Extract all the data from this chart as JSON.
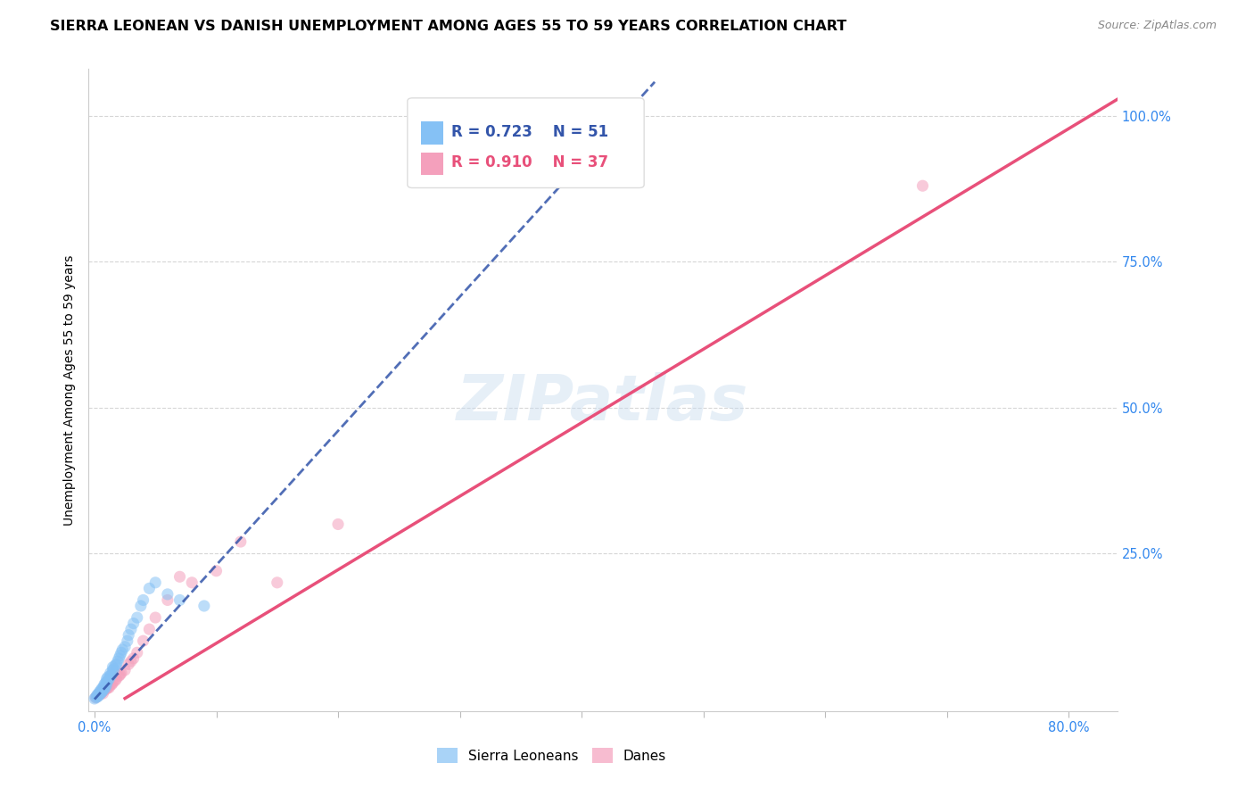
{
  "title": "SIERRA LEONEAN VS DANISH UNEMPLOYMENT AMONG AGES 55 TO 59 YEARS CORRELATION CHART",
  "source": "Source: ZipAtlas.com",
  "ylabel": "Unemployment Among Ages 55 to 59 years",
  "xlim": [
    -0.005,
    0.84
  ],
  "ylim": [
    -0.02,
    1.08
  ],
  "background_color": "#ffffff",
  "watermark": "ZIPatlas",
  "legend_r1": "0.723",
  "legend_n1": "51",
  "legend_r2": "0.910",
  "legend_n2": "37",
  "sierra_color": "#85C1F5",
  "sierra_line_color": "#3355AA",
  "dane_color": "#F4A0BC",
  "dane_line_color": "#E8507A",
  "sierra_points_x": [
    0.0,
    0.001,
    0.002,
    0.002,
    0.003,
    0.003,
    0.004,
    0.004,
    0.005,
    0.005,
    0.006,
    0.006,
    0.007,
    0.007,
    0.008,
    0.008,
    0.008,
    0.009,
    0.009,
    0.01,
    0.01,
    0.01,
    0.011,
    0.011,
    0.012,
    0.013,
    0.013,
    0.014,
    0.015,
    0.015,
    0.016,
    0.017,
    0.018,
    0.019,
    0.02,
    0.021,
    0.022,
    0.023,
    0.025,
    0.027,
    0.028,
    0.03,
    0.032,
    0.035,
    0.038,
    0.04,
    0.045,
    0.05,
    0.06,
    0.07,
    0.09
  ],
  "sierra_points_y": [
    0.001,
    0.003,
    0.004,
    0.007,
    0.005,
    0.009,
    0.008,
    0.012,
    0.01,
    0.015,
    0.012,
    0.018,
    0.015,
    0.02,
    0.018,
    0.022,
    0.025,
    0.02,
    0.028,
    0.025,
    0.03,
    0.035,
    0.032,
    0.038,
    0.035,
    0.04,
    0.045,
    0.042,
    0.05,
    0.055,
    0.052,
    0.058,
    0.06,
    0.065,
    0.07,
    0.075,
    0.08,
    0.085,
    0.09,
    0.1,
    0.11,
    0.12,
    0.13,
    0.14,
    0.16,
    0.17,
    0.19,
    0.2,
    0.18,
    0.17,
    0.16
  ],
  "dane_points_x": [
    0.001,
    0.002,
    0.003,
    0.004,
    0.005,
    0.006,
    0.007,
    0.007,
    0.008,
    0.009,
    0.01,
    0.011,
    0.012,
    0.013,
    0.014,
    0.015,
    0.017,
    0.018,
    0.02,
    0.021,
    0.022,
    0.025,
    0.028,
    0.03,
    0.032,
    0.035,
    0.04,
    0.045,
    0.05,
    0.06,
    0.07,
    0.08,
    0.1,
    0.12,
    0.15,
    0.2,
    0.68
  ],
  "dane_points_y": [
    0.003,
    0.005,
    0.007,
    0.01,
    0.009,
    0.012,
    0.01,
    0.015,
    0.015,
    0.018,
    0.018,
    0.02,
    0.02,
    0.025,
    0.025,
    0.028,
    0.032,
    0.035,
    0.04,
    0.042,
    0.045,
    0.05,
    0.06,
    0.065,
    0.07,
    0.08,
    0.1,
    0.12,
    0.14,
    0.17,
    0.21,
    0.2,
    0.22,
    0.27,
    0.2,
    0.3,
    0.88
  ],
  "dane_line_slope": 1.26,
  "dane_line_intercept": -0.03,
  "sierra_line_slope": 2.3,
  "sierra_line_intercept": 0.0,
  "title_fontsize": 11.5,
  "axis_label_fontsize": 10,
  "tick_fontsize": 10.5,
  "legend_fontsize": 12,
  "watermark_fontsize": 52,
  "dot_size": 90,
  "dot_alpha": 0.55,
  "grid_color": "#cccccc",
  "grid_linestyle": "--",
  "grid_alpha": 0.8,
  "y_tick_color": "#3388EE",
  "x_tick_color": "#3388EE",
  "y_ticks": [
    0.0,
    0.25,
    0.5,
    0.75,
    1.0
  ]
}
